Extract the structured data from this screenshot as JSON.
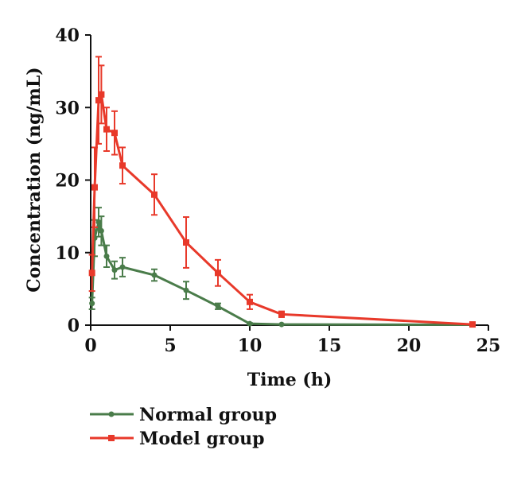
{
  "chart_data": {
    "type": "line",
    "xlabel": "Time (h)",
    "ylabel": "Concentration (ng/mL)",
    "xlim": [
      0,
      25
    ],
    "ylim": [
      0,
      40
    ],
    "xticks": [
      0,
      5,
      10,
      15,
      20,
      25
    ],
    "yticks": [
      0,
      10,
      20,
      30,
      40
    ],
    "grid": false,
    "legend_position": "bottom-left",
    "series": [
      {
        "name": "Normal group",
        "color": "#4a7c4a",
        "marker": "circle",
        "x": [
          0.083,
          0.25,
          0.5,
          0.67,
          1.0,
          1.5,
          2.0,
          4.0,
          6.0,
          8.0,
          10.0,
          12.0,
          24.0
        ],
        "y": [
          3.0,
          12.0,
          14.2,
          13.0,
          9.5,
          7.6,
          8.0,
          6.9,
          4.8,
          2.6,
          0.2,
          0.1,
          0.05
        ],
        "err": [
          0.8,
          2.5,
          2.0,
          2.0,
          1.5,
          1.2,
          1.3,
          0.8,
          1.2,
          0.4,
          0.1,
          0.05,
          0.05
        ]
      },
      {
        "name": "Model group",
        "color": "#e8392a",
        "marker": "square",
        "x": [
          0.083,
          0.25,
          0.5,
          0.67,
          1.0,
          1.5,
          2.0,
          4.0,
          6.0,
          8.0,
          10.0,
          12.0,
          24.0
        ],
        "y": [
          7.2,
          19.0,
          31.0,
          31.8,
          27.0,
          26.5,
          22.0,
          18.0,
          11.4,
          7.2,
          3.2,
          1.5,
          0.1
        ],
        "err": [
          2.5,
          5.5,
          6.0,
          4.0,
          3.0,
          3.0,
          2.5,
          2.8,
          3.5,
          1.8,
          1.0,
          0.4,
          0.1
        ]
      }
    ]
  }
}
